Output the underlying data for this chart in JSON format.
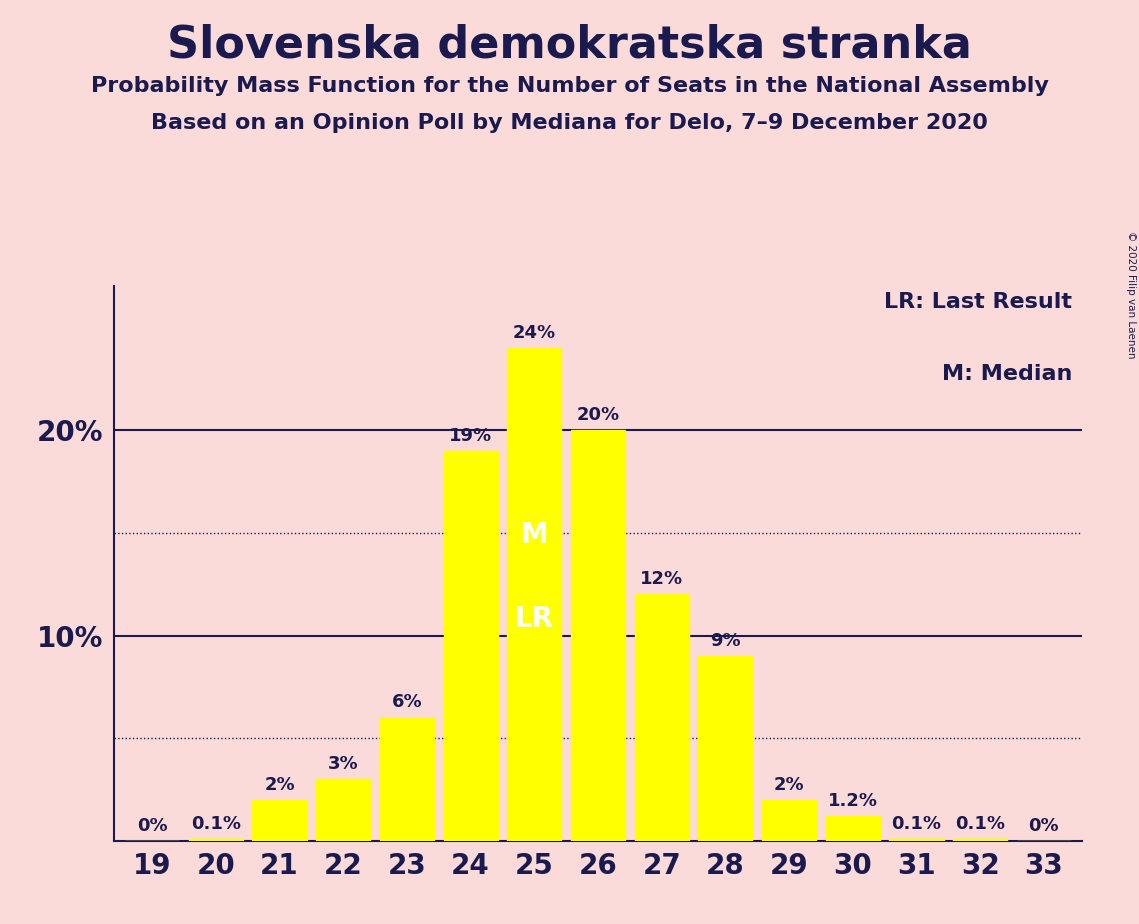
{
  "title": "Slovenska demokratska stranka",
  "subtitle1": "Probability Mass Function for the Number of Seats in the National Assembly",
  "subtitle2": "Based on an Opinion Poll by Mediana for Delo, 7–9 December 2020",
  "copyright": "© 2020 Filip van Laenen",
  "legend_lr": "LR: Last Result",
  "legend_m": "M: Median",
  "background_color": "#FBDADA",
  "bar_color": "#FFFF00",
  "text_color": "#1a1a4e",
  "categories": [
    19,
    20,
    21,
    22,
    23,
    24,
    25,
    26,
    27,
    28,
    29,
    30,
    31,
    32,
    33
  ],
  "values": [
    0.0,
    0.1,
    2.0,
    3.0,
    6.0,
    19.0,
    24.0,
    20.0,
    12.0,
    9.0,
    2.0,
    1.2,
    0.1,
    0.1,
    0.0
  ],
  "labels": [
    "0%",
    "0.1%",
    "2%",
    "3%",
    "6%",
    "19%",
    "24%",
    "20%",
    "12%",
    "9%",
    "2%",
    "1.2%",
    "0.1%",
    "0.1%",
    "0%"
  ],
  "median_seat": 25,
  "last_result_seat": 25,
  "yticks": [
    10,
    20
  ],
  "ylim": [
    0,
    27
  ],
  "solid_gridlines": [
    10.0,
    20.0
  ],
  "dotted_gridlines": [
    5.0,
    15.0
  ]
}
